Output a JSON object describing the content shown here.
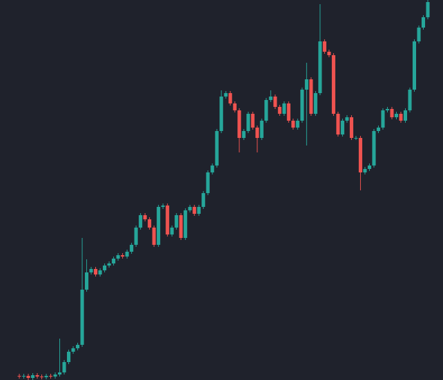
{
  "chart_data": {
    "type": "candlestick",
    "up_color": "#26a69a",
    "down_color": "#ef5350",
    "background": "#1f222c",
    "ylim": [
      0,
      551
    ],
    "open": [
      6,
      5,
      6,
      3,
      7,
      5,
      4,
      6,
      5,
      8,
      11,
      26,
      41,
      46,
      51,
      131,
      156,
      161,
      153,
      159,
      166,
      169,
      176,
      181,
      179,
      186,
      196,
      221,
      239,
      233,
      221,
      196,
      251,
      253,
      211,
      221,
      239,
      206,
      246,
      251,
      241,
      251,
      271,
      301,
      311,
      361,
      411,
      416,
      401,
      391,
      351,
      361,
      386,
      366,
      351,
      376,
      406,
      411,
      396,
      386,
      401,
      376,
      366,
      376,
      421,
      436,
      386,
      416,
      491,
      476,
      471,
      386,
      356,
      376,
      381,
      351,
      351,
      301,
      306,
      311,
      361,
      366,
      391,
      393,
      381,
      386,
      376,
      391,
      421,
      491,
      511,
      526
    ],
    "high": [
      9,
      9,
      9,
      10,
      10,
      8,
      9,
      9,
      11,
      60,
      29,
      44,
      49,
      54,
      206,
      175,
      164,
      164,
      162,
      169,
      172,
      179,
      184,
      184,
      189,
      199,
      224,
      242,
      242,
      236,
      224,
      254,
      256,
      256,
      224,
      242,
      242,
      249,
      254,
      254,
      254,
      274,
      304,
      314,
      364,
      420,
      419,
      419,
      404,
      394,
      364,
      389,
      389,
      369,
      379,
      409,
      420,
      414,
      399,
      404,
      404,
      379,
      379,
      424,
      460,
      439,
      419,
      545,
      494,
      479,
      474,
      389,
      379,
      384,
      384,
      354,
      354,
      309,
      314,
      364,
      369,
      394,
      396,
      396,
      389,
      389,
      394,
      424,
      494,
      514,
      529,
      551
    ],
    "low": [
      2,
      2,
      0,
      0,
      2,
      1,
      1,
      2,
      2,
      5,
      8,
      23,
      38,
      43,
      48,
      128,
      153,
      150,
      150,
      156,
      163,
      166,
      173,
      176,
      176,
      183,
      193,
      218,
      230,
      218,
      193,
      193,
      248,
      208,
      208,
      218,
      203,
      203,
      243,
      238,
      238,
      248,
      268,
      298,
      308,
      358,
      408,
      398,
      388,
      330,
      348,
      358,
      363,
      330,
      348,
      373,
      403,
      393,
      383,
      383,
      373,
      363,
      363,
      373,
      340,
      383,
      383,
      413,
      473,
      468,
      383,
      353,
      353,
      373,
      348,
      348,
      275,
      298,
      303,
      308,
      358,
      363,
      388,
      378,
      378,
      373,
      373,
      388,
      418,
      488,
      508,
      523
    ],
    "close": [
      5,
      6,
      3,
      7,
      5,
      4,
      6,
      5,
      8,
      11,
      26,
      41,
      46,
      51,
      131,
      156,
      161,
      153,
      159,
      166,
      169,
      176,
      181,
      179,
      186,
      196,
      221,
      239,
      233,
      221,
      196,
      251,
      253,
      211,
      221,
      239,
      206,
      246,
      251,
      241,
      251,
      271,
      301,
      311,
      361,
      411,
      416,
      401,
      391,
      351,
      361,
      386,
      366,
      351,
      376,
      406,
      411,
      396,
      386,
      401,
      376,
      366,
      376,
      421,
      436,
      386,
      416,
      491,
      476,
      471,
      386,
      356,
      376,
      381,
      351,
      351,
      301,
      306,
      311,
      361,
      366,
      391,
      393,
      381,
      386,
      376,
      391,
      421,
      491,
      511,
      526,
      548
    ]
  }
}
